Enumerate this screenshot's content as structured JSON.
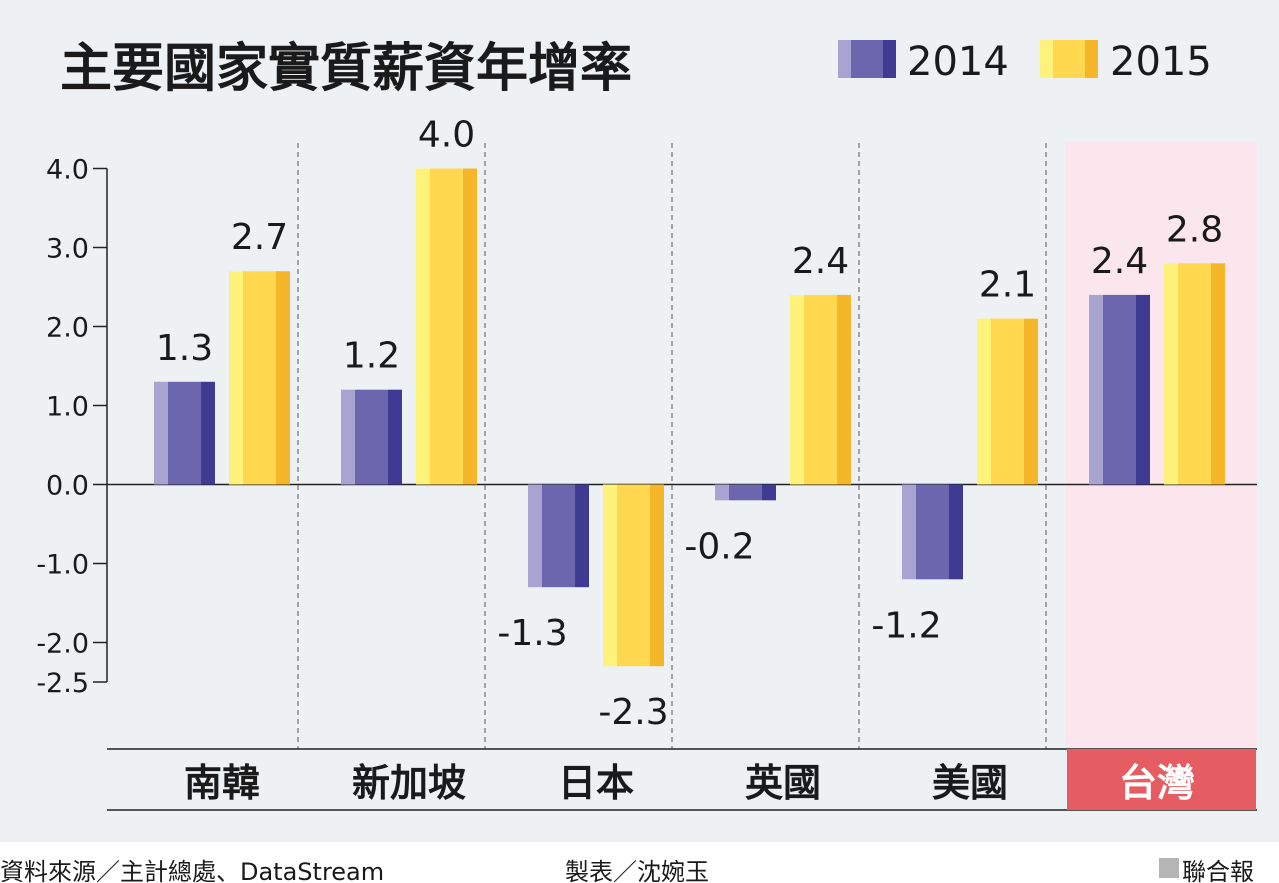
{
  "colors": {
    "background": "#edf1f4",
    "highlight_bg": "#fbe6ee",
    "highlight_label_bg": "#e55d63",
    "series_2014": [
      "#a8a4d2",
      "#6b66ae",
      "#3f3b93"
    ],
    "series_2015": [
      "#fff27a",
      "#ffd84f",
      "#f5b62a"
    ]
  },
  "chart_data": {
    "type": "bar",
    "title": "主要國家實質薪資年增率",
    "categories": [
      "南韓",
      "新加坡",
      "日本",
      "英國",
      "美國",
      "台灣"
    ],
    "highlight_category": "台灣",
    "series": [
      {
        "name": "2014",
        "values": [
          1.3,
          1.2,
          -1.3,
          -0.2,
          -1.2,
          2.4
        ]
      },
      {
        "name": "2015",
        "values": [
          2.7,
          4.0,
          -2.3,
          2.4,
          2.1,
          2.8
        ]
      }
    ],
    "value_labels": [
      [
        "1.3",
        "1.2",
        "-1.3",
        "-0.2",
        "-1.2",
        "2.4"
      ],
      [
        "2.7",
        "4.0",
        "-2.3",
        "2.4",
        "2.1",
        "2.8"
      ]
    ],
    "y_ticks": [
      4.0,
      3.0,
      2.0,
      1.0,
      0.0,
      -1.0,
      -2.0,
      -2.5
    ],
    "y_tick_labels": [
      "4.0",
      "3.0",
      "2.0",
      "1.0",
      "0.0",
      "-1.0",
      "-2.0",
      "-2.5"
    ],
    "ylim": [
      -2.5,
      4.0
    ],
    "grid": false,
    "legend_position": "top-right"
  },
  "footer": {
    "source": "資料來源／主計總處、DataStream",
    "maker": "製表／沈婉玉",
    "brand": "聯合報"
  }
}
